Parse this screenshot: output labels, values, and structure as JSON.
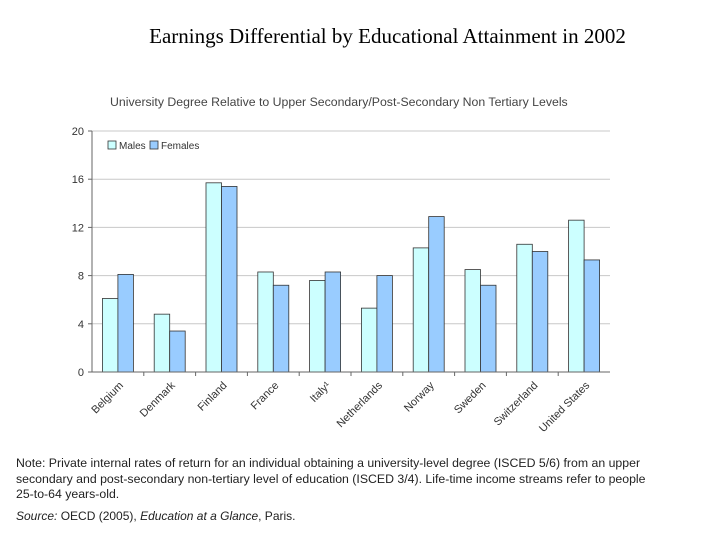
{
  "slide": {
    "title": "Earnings Differential by Educational Attainment in 2002"
  },
  "chart_data": {
    "type": "bar",
    "title": "University Degree Relative to Upper Secondary/Post-Secondary Non Tertiary Levels",
    "categories": [
      "Belgium",
      "Denmark",
      "Finland",
      "France",
      "Italy¹",
      "Netherlands",
      "Norway",
      "Sweden",
      "Switzerland",
      "United States"
    ],
    "series": [
      {
        "name": "Males",
        "color": "#ccffff",
        "values": [
          6.1,
          4.8,
          15.7,
          8.3,
          7.6,
          5.3,
          10.3,
          8.5,
          10.6,
          12.6
        ]
      },
      {
        "name": "Females",
        "color": "#99ccff",
        "values": [
          8.1,
          3.4,
          15.4,
          7.2,
          8.3,
          8.0,
          12.9,
          7.2,
          10.0,
          9.3
        ]
      }
    ],
    "ylim": [
      0,
      20
    ],
    "yticks": [
      0,
      4,
      8,
      12,
      16,
      20
    ],
    "grid": true,
    "legend": "top-left"
  },
  "footnote": {
    "note": "Note: Private internal rates of return for an individual obtaining a university-level degree (ISCED 5/6) from an upper secondary and post-secondary non-tertiary level of education (ISCED 3/4). Life-time income streams refer to people 25-to-64 years-old.",
    "source_label": "Source:",
    "source_text": " OECD (2005), ",
    "source_publication": "Education at a Glance",
    "source_city": ", Paris."
  }
}
